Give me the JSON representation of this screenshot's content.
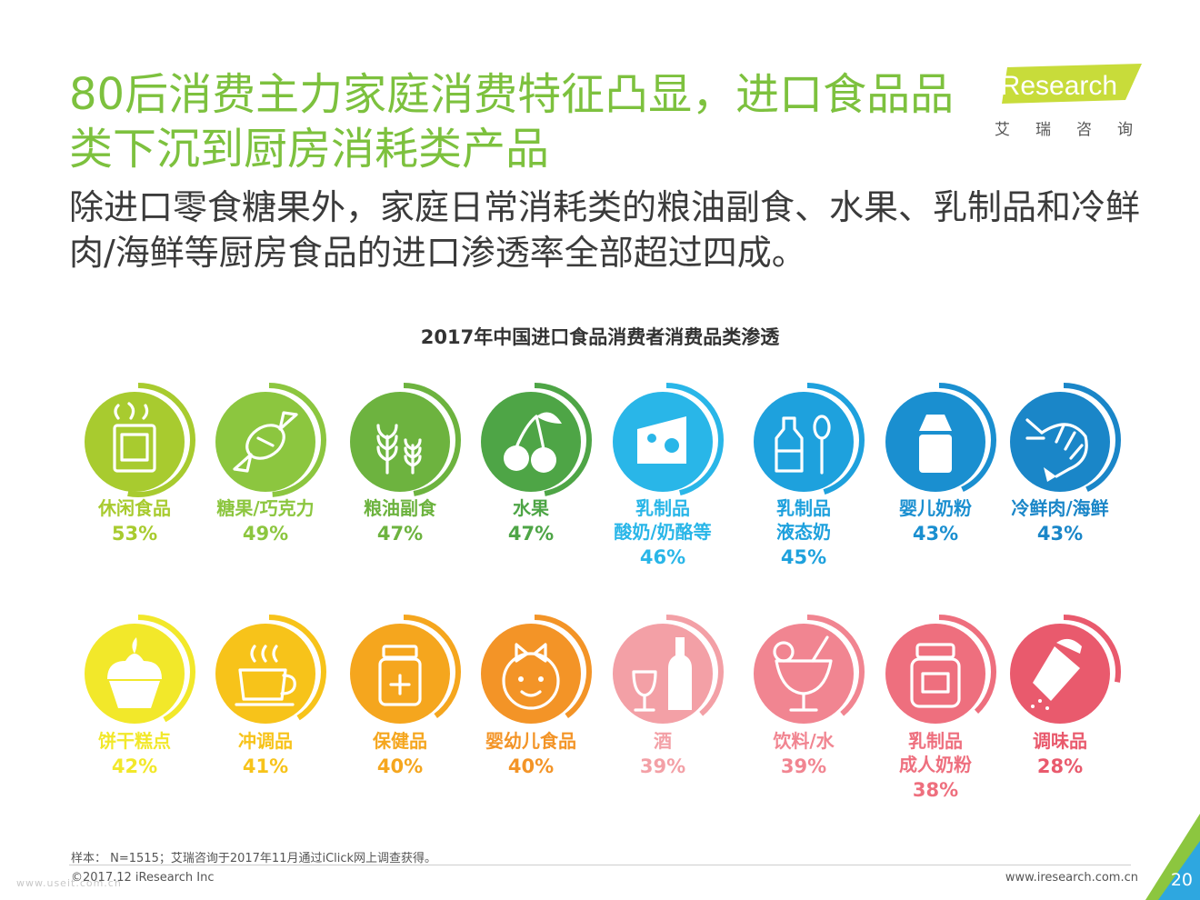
{
  "header": {
    "title": "80后消费主力家庭消费特征凸显，进口食品品类下沉到厨房消耗类产品",
    "subtitle": "除进口零食糖果外，家庭日常消耗类的粮油副食、水果、乳制品和冷鲜肉/海鲜等厨房食品的进口渗透率全部超过四成。"
  },
  "logo": {
    "text": "iResearch",
    "sub": "艾瑞咨询"
  },
  "chart_data": {
    "type": "radial-progress",
    "title": "2017年中国进口食品消费者消费品类渗透",
    "unit": "%",
    "categories": [
      {
        "name": "休闲食品",
        "value": 53,
        "color": "#a8cb2f",
        "icon": "snack-bag-icon"
      },
      {
        "name": "糖果/巧克力",
        "value": 49,
        "color": "#8cc63f",
        "icon": "candy-icon"
      },
      {
        "name": "粮油副食",
        "value": 47,
        "color": "#6db33f",
        "icon": "grain-icon"
      },
      {
        "name": "水果",
        "value": 47,
        "color": "#4ea546",
        "icon": "cherry-icon"
      },
      {
        "name": "乳制品 酸奶/奶酪等",
        "value": 46,
        "color": "#29b6e8",
        "icon": "cheese-icon"
      },
      {
        "name": "乳制品 液态奶",
        "value": 45,
        "color": "#1ea1dd",
        "icon": "milk-bottle-spoon-icon"
      },
      {
        "name": "婴儿奶粉",
        "value": 43,
        "color": "#1a8fd0",
        "icon": "formula-can-icon"
      },
      {
        "name": "冷鲜肉/海鲜",
        "value": 43,
        "color": "#1a86c8",
        "icon": "shrimp-icon"
      },
      {
        "name": "饼干糕点",
        "value": 42,
        "color": "#f2e82a",
        "icon": "cupcake-icon"
      },
      {
        "name": "冲调品",
        "value": 41,
        "color": "#f7c31a",
        "icon": "coffee-cup-icon"
      },
      {
        "name": "保健品",
        "value": 40,
        "color": "#f5a61e",
        "icon": "medicine-jar-icon"
      },
      {
        "name": "婴幼儿食品",
        "value": 40,
        "color": "#f39427",
        "icon": "baby-face-icon"
      },
      {
        "name": "酒",
        "value": 39,
        "color": "#f3a0a6",
        "icon": "wine-bottle-icon"
      },
      {
        "name": "饮料/水",
        "value": 39,
        "color": "#f18591",
        "icon": "cocktail-icon"
      },
      {
        "name": "乳制品 成人奶粉",
        "value": 38,
        "color": "#ee6f7e",
        "icon": "jar-icon"
      },
      {
        "name": "调味品",
        "value": 28,
        "color": "#e95a6d",
        "icon": "salt-shaker-icon"
      }
    ]
  },
  "labels_rows": [
    [
      {
        "lines": [
          "休闲食品"
        ],
        "pct": "53%"
      },
      {
        "lines": [
          "糖果/巧克力"
        ],
        "pct": "49%"
      },
      {
        "lines": [
          "粮油副食"
        ],
        "pct": "47%"
      },
      {
        "lines": [
          "水果"
        ],
        "pct": "47%"
      },
      {
        "lines": [
          "乳制品",
          "酸奶/奶酪等"
        ],
        "pct": "46%"
      },
      {
        "lines": [
          "乳制品",
          "液态奶"
        ],
        "pct": "45%"
      },
      {
        "lines": [
          "婴儿奶粉"
        ],
        "pct": "43%"
      },
      {
        "lines": [
          "冷鲜肉/海鲜"
        ],
        "pct": "43%"
      }
    ],
    [
      {
        "lines": [
          "饼干糕点"
        ],
        "pct": "42%"
      },
      {
        "lines": [
          "冲调品"
        ],
        "pct": "41%"
      },
      {
        "lines": [
          "保健品"
        ],
        "pct": "40%"
      },
      {
        "lines": [
          "婴幼儿食品"
        ],
        "pct": "40%"
      },
      {
        "lines": [
          "酒"
        ],
        "pct": "39%"
      },
      {
        "lines": [
          "饮料/水"
        ],
        "pct": "39%"
      },
      {
        "lines": [
          "乳制品",
          "成人奶粉"
        ],
        "pct": "38%"
      },
      {
        "lines": [
          "调味品"
        ],
        "pct": "28%"
      }
    ]
  ],
  "footer": {
    "note": "样本： N=1515；艾瑞咨询于2017年11月通过iClick网上调查获得。",
    "copyright": "©2017.12 iResearch Inc",
    "website": "www.iresearch.com.cn",
    "page": "20",
    "watermark": "www.useit.com.cn"
  }
}
